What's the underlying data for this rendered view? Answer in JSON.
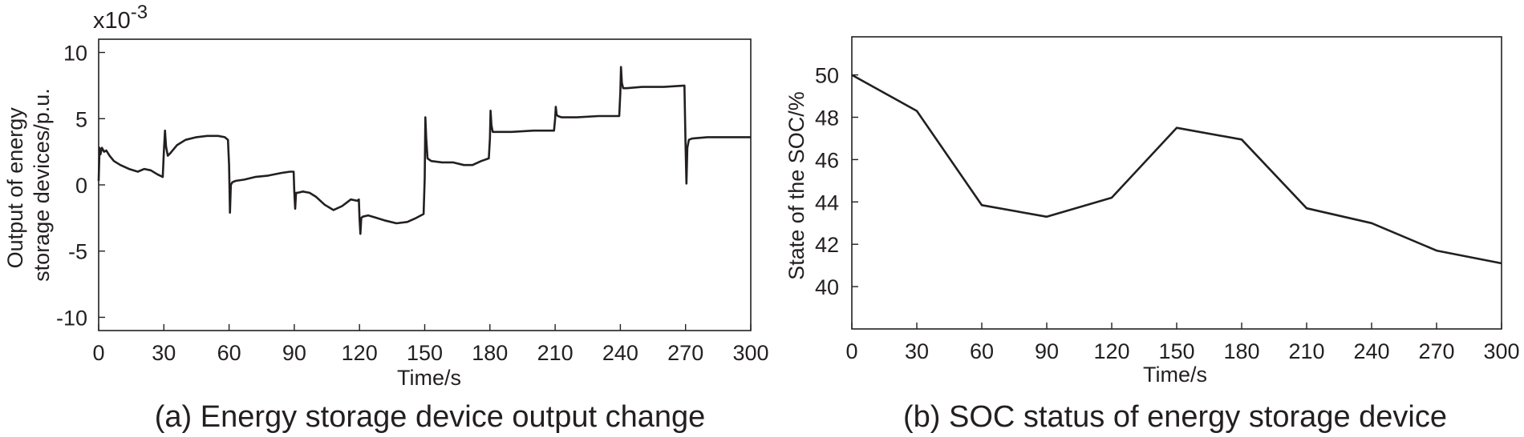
{
  "colors": {
    "ink": "#231f20",
    "background": "#ffffff"
  },
  "chart_data": [
    {
      "type": "line",
      "caption": "(a) Energy storage device output change",
      "xlabel": "Time/s",
      "ylabel_lines": [
        "Output of energy",
        "storage devices/p.u."
      ],
      "scale_label": "x10",
      "scale_exponent": "-3",
      "xlim": [
        0,
        300
      ],
      "ylim": [
        -11,
        11
      ],
      "xticks": [
        0,
        30,
        60,
        90,
        120,
        150,
        180,
        210,
        240,
        270,
        300
      ],
      "xtick_labels": [
        "0",
        "30",
        "60",
        "90",
        "120",
        "150",
        "180",
        "210",
        "240",
        "270",
        "300"
      ],
      "yticks": [
        -10,
        -5,
        0,
        5,
        10
      ],
      "ytick_labels": [
        "-10",
        "-5",
        "0",
        "5",
        "10"
      ],
      "series": [
        {
          "name": "output",
          "x": [
            0,
            0.4,
            0.8,
            1.5,
            2.5,
            3.5,
            5,
            7,
            10,
            14,
            18,
            21,
            24,
            27,
            29.5,
            30,
            30.5,
            31,
            31.8,
            33,
            36,
            40,
            45,
            50,
            55,
            58,
            59.5,
            60,
            60.4,
            60.8,
            61.5,
            63,
            67,
            72,
            78,
            84,
            88,
            89.7,
            90,
            90.4,
            90.8,
            91.5,
            94,
            97,
            100,
            104,
            108,
            112,
            116,
            119,
            119.7,
            120,
            120.4,
            120.8,
            121.5,
            124,
            128,
            132,
            137,
            142,
            146,
            149.5,
            150,
            150.3,
            150.7,
            151.3,
            153,
            158,
            163,
            168,
            172,
            176,
            179.5,
            180,
            180.3,
            180.7,
            181.3,
            183,
            190,
            200,
            209.5,
            210,
            210.3,
            210.7,
            211.3,
            213,
            220,
            230,
            239.5,
            240,
            240.3,
            240.7,
            241.3,
            243,
            250,
            260,
            269.5,
            270,
            270.4,
            270.8,
            271.5,
            273,
            280,
            290,
            300
          ],
          "y": [
            0.3,
            2.8,
            2.3,
            2.8,
            2.5,
            2.6,
            2.2,
            1.8,
            1.5,
            1.2,
            1.0,
            1.2,
            1.1,
            0.8,
            0.6,
            2.5,
            4.1,
            2.9,
            2.2,
            2.4,
            3.0,
            3.4,
            3.6,
            3.7,
            3.7,
            3.6,
            3.4,
            1.5,
            -2.1,
            0.0,
            0.2,
            0.3,
            0.4,
            0.6,
            0.7,
            0.9,
            1.0,
            1.0,
            -0.5,
            -1.8,
            -0.6,
            -0.6,
            -0.5,
            -0.6,
            -0.9,
            -1.5,
            -1.9,
            -1.6,
            -1.1,
            -1.2,
            -1.1,
            -2.5,
            -3.7,
            -2.5,
            -2.4,
            -2.3,
            -2.5,
            -2.7,
            -2.9,
            -2.8,
            -2.5,
            -2.2,
            0.5,
            5.1,
            3.5,
            2.0,
            1.8,
            1.7,
            1.7,
            1.5,
            1.5,
            1.8,
            2.0,
            3.5,
            5.6,
            4.5,
            4.0,
            4.0,
            4.0,
            4.1,
            4.1,
            5.0,
            5.9,
            5.3,
            5.2,
            5.1,
            5.1,
            5.2,
            5.2,
            7.0,
            8.9,
            7.7,
            7.3,
            7.3,
            7.4,
            7.4,
            7.5,
            3.0,
            0.1,
            2.8,
            3.4,
            3.5,
            3.6,
            3.6,
            3.6
          ]
        }
      ]
    },
    {
      "type": "line",
      "caption": "(b) SOC status of energy storage device",
      "xlabel": "Time/s",
      "ylabel": "State of the SOC/%",
      "xlim": [
        0,
        300
      ],
      "ylim": [
        38,
        51.8
      ],
      "xticks": [
        0,
        30,
        60,
        90,
        120,
        150,
        180,
        210,
        240,
        270,
        300
      ],
      "xtick_labels": [
        "0",
        "30",
        "60",
        "90",
        "120",
        "150",
        "180",
        "210",
        "240",
        "270",
        "300"
      ],
      "yticks": [
        40,
        42,
        44,
        46,
        48,
        50
      ],
      "ytick_labels": [
        "40",
        "42",
        "44",
        "46",
        "48",
        "50"
      ],
      "series": [
        {
          "name": "SOC",
          "x": [
            0,
            30,
            60,
            90,
            120,
            150,
            180,
            210,
            240,
            270,
            300
          ],
          "y": [
            50.0,
            48.3,
            43.85,
            43.3,
            44.2,
            47.5,
            46.95,
            43.7,
            43.0,
            41.7,
            41.1
          ]
        }
      ]
    }
  ]
}
